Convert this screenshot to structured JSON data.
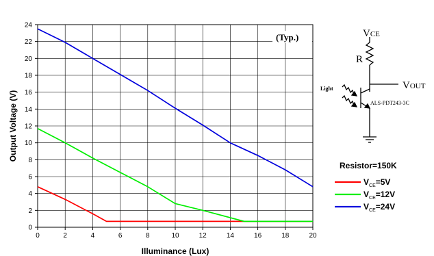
{
  "chart_data": {
    "type": "line",
    "xlabel": "Illuminance (Lux)",
    "ylabel": "Output Voltage (V)",
    "xlim": [
      0,
      20
    ],
    "ylim": [
      0,
      24
    ],
    "xticks": [
      0,
      2,
      4,
      6,
      8,
      10,
      12,
      14,
      16,
      18,
      20
    ],
    "yticks": [
      0,
      2,
      4,
      6,
      8,
      10,
      12,
      14,
      16,
      18,
      20,
      22,
      24
    ],
    "grid": true,
    "annotation": "(Typ.)",
    "series": [
      {
        "name_main": "V",
        "name_sub": "CE",
        "name_tail": "=5V",
        "color": "#ff0000",
        "x": [
          0,
          2,
          4,
          5,
          15,
          20
        ],
        "y": [
          4.8,
          3.3,
          1.6,
          0.7,
          0.7,
          0.7
        ]
      },
      {
        "name_main": "V",
        "name_sub": "CE",
        "name_tail": "=12V",
        "color": "#00ee00",
        "x": [
          0,
          2,
          4,
          6,
          8,
          10,
          12,
          15,
          20
        ],
        "y": [
          11.7,
          10.0,
          8.2,
          6.5,
          4.8,
          2.8,
          2.0,
          0.7,
          0.7
        ]
      },
      {
        "name_main": "V",
        "name_sub": "CE",
        "name_tail": "=24V",
        "color": "#0000dd",
        "x": [
          0,
          2,
          4,
          6,
          8,
          10,
          12,
          14,
          16,
          18,
          20
        ],
        "y": [
          23.5,
          21.9,
          20.0,
          18.1,
          16.2,
          14.1,
          12.1,
          10.0,
          8.5,
          6.8,
          4.8
        ]
      }
    ]
  },
  "legend": {
    "title": "Resistor=150K"
  },
  "circuit": {
    "vce_main": "V",
    "vce_sub": "CE",
    "resistor_label": "R",
    "vout_main": "V",
    "vout_sub": "OUT",
    "light_label": "Light",
    "part_label": "ALS-PDT243-3C"
  }
}
